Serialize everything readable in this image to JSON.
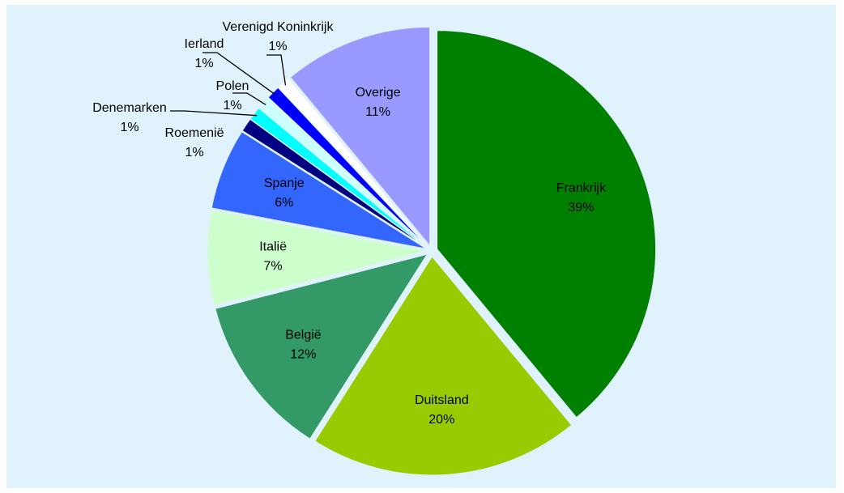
{
  "chart_data": {
    "type": "pie",
    "categories": [
      "Frankrijk",
      "Duitsland",
      "België",
      "Italië",
      "Spanje",
      "Roemenië",
      "Denemarken",
      "Polen",
      "Ierland",
      "Verenigd Koninkrijk",
      "Overige"
    ],
    "values": [
      39,
      20,
      12,
      7,
      6,
      1,
      1,
      1,
      1,
      1,
      11
    ],
    "value_labels": [
      "39%",
      "20%",
      "12%",
      "7%",
      "6%",
      "1%",
      "1%",
      "1%",
      "1%",
      "1%",
      "11%"
    ],
    "colors": [
      "#008000",
      "#99cc00",
      "#339966",
      "#ccffcc",
      "#3366ff",
      "#000080",
      "#00ffff",
      "#ccffff",
      "#0000ff",
      "#ffffff",
      "#9999ff"
    ]
  }
}
